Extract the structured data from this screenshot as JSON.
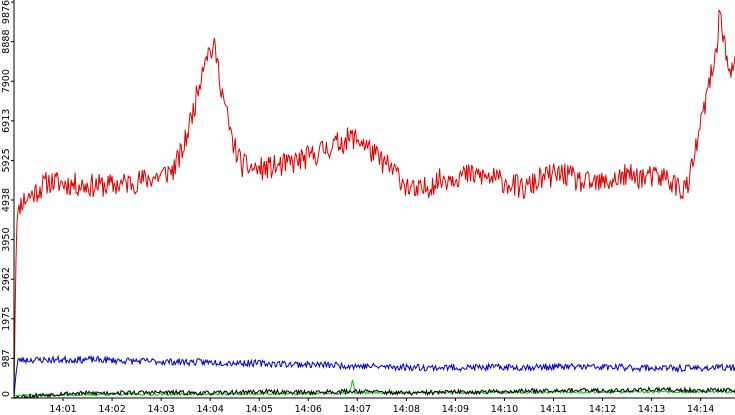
{
  "chart_data": {
    "type": "line",
    "y_ticks": [
      0,
      987,
      1975,
      2962,
      3950,
      4938,
      5925,
      6913,
      7900,
      8888,
      9876
    ],
    "ylim": [
      0,
      9876
    ],
    "x_ticks": [
      "14:01",
      "14:02",
      "14:03",
      "14:04",
      "14:05",
      "14:06",
      "14:07",
      "14:08",
      "14:09",
      "14:10",
      "14:11",
      "14:12",
      "14:13",
      "14:14"
    ],
    "x_tick_minutes": [
      1,
      2,
      3,
      4,
      5,
      6,
      7,
      8,
      9,
      10,
      11,
      12,
      13,
      14
    ],
    "xlim_minutes": [
      0.0,
      14.7
    ],
    "grid": false,
    "series": [
      {
        "color": "#e00000",
        "keypoints": [
          [
            0.0,
            0
          ],
          [
            0.03,
            2900
          ],
          [
            0.06,
            4500
          ],
          [
            0.15,
            4900
          ],
          [
            0.4,
            5100
          ],
          [
            0.7,
            5400
          ],
          [
            1.0,
            5350
          ],
          [
            1.5,
            5300
          ],
          [
            2.0,
            5300
          ],
          [
            2.5,
            5400
          ],
          [
            3.0,
            5550
          ],
          [
            3.25,
            5700
          ],
          [
            3.45,
            6200
          ],
          [
            3.7,
            7400
          ],
          [
            3.9,
            8600
          ],
          [
            4.1,
            8700
          ],
          [
            4.25,
            7600
          ],
          [
            4.45,
            6400
          ],
          [
            4.65,
            5800
          ],
          [
            5.0,
            5700
          ],
          [
            5.5,
            5800
          ],
          [
            6.0,
            6000
          ],
          [
            6.5,
            6300
          ],
          [
            6.9,
            6500
          ],
          [
            7.1,
            6400
          ],
          [
            7.4,
            6000
          ],
          [
            7.8,
            5600
          ],
          [
            8.0,
            5300
          ],
          [
            8.2,
            5100
          ],
          [
            8.6,
            5400
          ],
          [
            9.0,
            5550
          ],
          [
            9.5,
            5550
          ],
          [
            10.0,
            5400
          ],
          [
            10.4,
            5200
          ],
          [
            10.8,
            5500
          ],
          [
            11.2,
            5600
          ],
          [
            11.6,
            5350
          ],
          [
            12.0,
            5350
          ],
          [
            12.5,
            5550
          ],
          [
            12.9,
            5500
          ],
          [
            13.3,
            5500
          ],
          [
            13.6,
            5200
          ],
          [
            13.75,
            5300
          ],
          [
            13.95,
            6500
          ],
          [
            14.15,
            7700
          ],
          [
            14.3,
            8500
          ],
          [
            14.4,
            9700
          ],
          [
            14.5,
            8700
          ],
          [
            14.6,
            8000
          ],
          [
            14.7,
            8300
          ]
        ],
        "noise": 300,
        "seed": 11
      },
      {
        "color": "#0000cc",
        "keypoints": [
          [
            0.0,
            0
          ],
          [
            0.03,
            500
          ],
          [
            0.08,
            950
          ],
          [
            0.5,
            950
          ],
          [
            1.5,
            960
          ],
          [
            2.5,
            920
          ],
          [
            3.5,
            900
          ],
          [
            4.5,
            880
          ],
          [
            5.5,
            850
          ],
          [
            6.5,
            820
          ],
          [
            7.5,
            780
          ],
          [
            8.5,
            760
          ],
          [
            9.5,
            760
          ],
          [
            10.5,
            770
          ],
          [
            11.5,
            780
          ],
          [
            12.5,
            760
          ],
          [
            13.5,
            740
          ],
          [
            14.7,
            760
          ]
        ],
        "noise": 85,
        "seed": 23
      },
      {
        "color": "#00cc00",
        "keypoints": [
          [
            0.0,
            70
          ],
          [
            2.0,
            90
          ],
          [
            4.0,
            100
          ],
          [
            6.0,
            110
          ],
          [
            6.85,
            120
          ],
          [
            6.9,
            480
          ],
          [
            6.95,
            130
          ],
          [
            8.0,
            130
          ],
          [
            10.0,
            140
          ],
          [
            12.0,
            150
          ],
          [
            14.7,
            150
          ]
        ],
        "noise": 30,
        "seed": 37
      },
      {
        "color": "#000000",
        "keypoints": [
          [
            0.0,
            20
          ],
          [
            1.0,
            110
          ],
          [
            2.0,
            130
          ],
          [
            3.0,
            140
          ],
          [
            4.0,
            120
          ],
          [
            5.0,
            160
          ],
          [
            6.0,
            140
          ],
          [
            7.0,
            170
          ],
          [
            8.0,
            120
          ],
          [
            9.0,
            150
          ],
          [
            10.0,
            160
          ],
          [
            11.0,
            200
          ],
          [
            12.0,
            180
          ],
          [
            13.0,
            210
          ],
          [
            14.0,
            190
          ],
          [
            14.7,
            200
          ]
        ],
        "noise": 55,
        "seed": 53
      }
    ]
  }
}
